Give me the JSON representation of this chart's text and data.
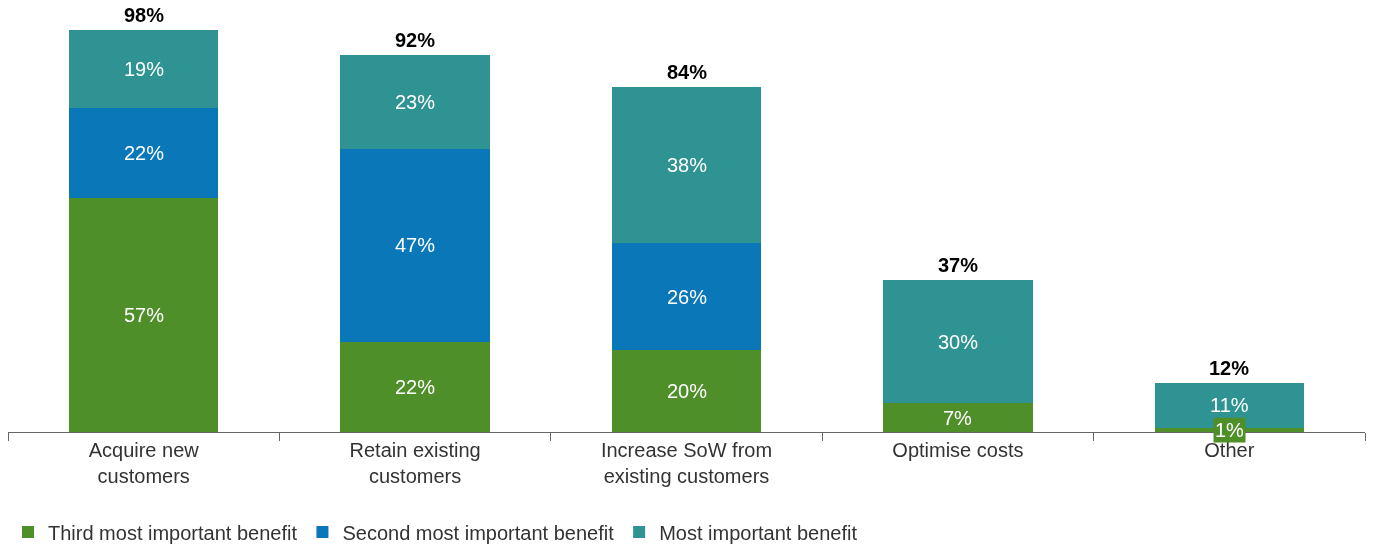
{
  "chart_data": {
    "type": "bar",
    "stacked": true,
    "legend": "bottom",
    "categories": [
      "Acquire new customers",
      "Retain existing customers",
      "Increase SoW from existing customers",
      "Optimise costs",
      "Other"
    ],
    "series": [
      {
        "name": "Third most important benefit",
        "color": "#4f8f2a",
        "values": [
          57,
          22,
          20,
          7,
          1
        ],
        "value_labels": [
          "57%",
          "22%",
          "20%",
          "7%",
          "1%"
        ]
      },
      {
        "name": "Second most important benefit",
        "color": "#0a78b8",
        "values": [
          22,
          47,
          26,
          null,
          null
        ],
        "value_labels": [
          "22%",
          "47%",
          "26%",
          null,
          null
        ]
      },
      {
        "name": "Most important benefit",
        "color": "#2f9393",
        "values": [
          19,
          23,
          38,
          30,
          11
        ],
        "value_labels": [
          "19%",
          "23%",
          "38%",
          "30%",
          "11%"
        ]
      }
    ],
    "totals": [
      "98%",
      "92%",
      "84%",
      "37%",
      "12%"
    ]
  }
}
